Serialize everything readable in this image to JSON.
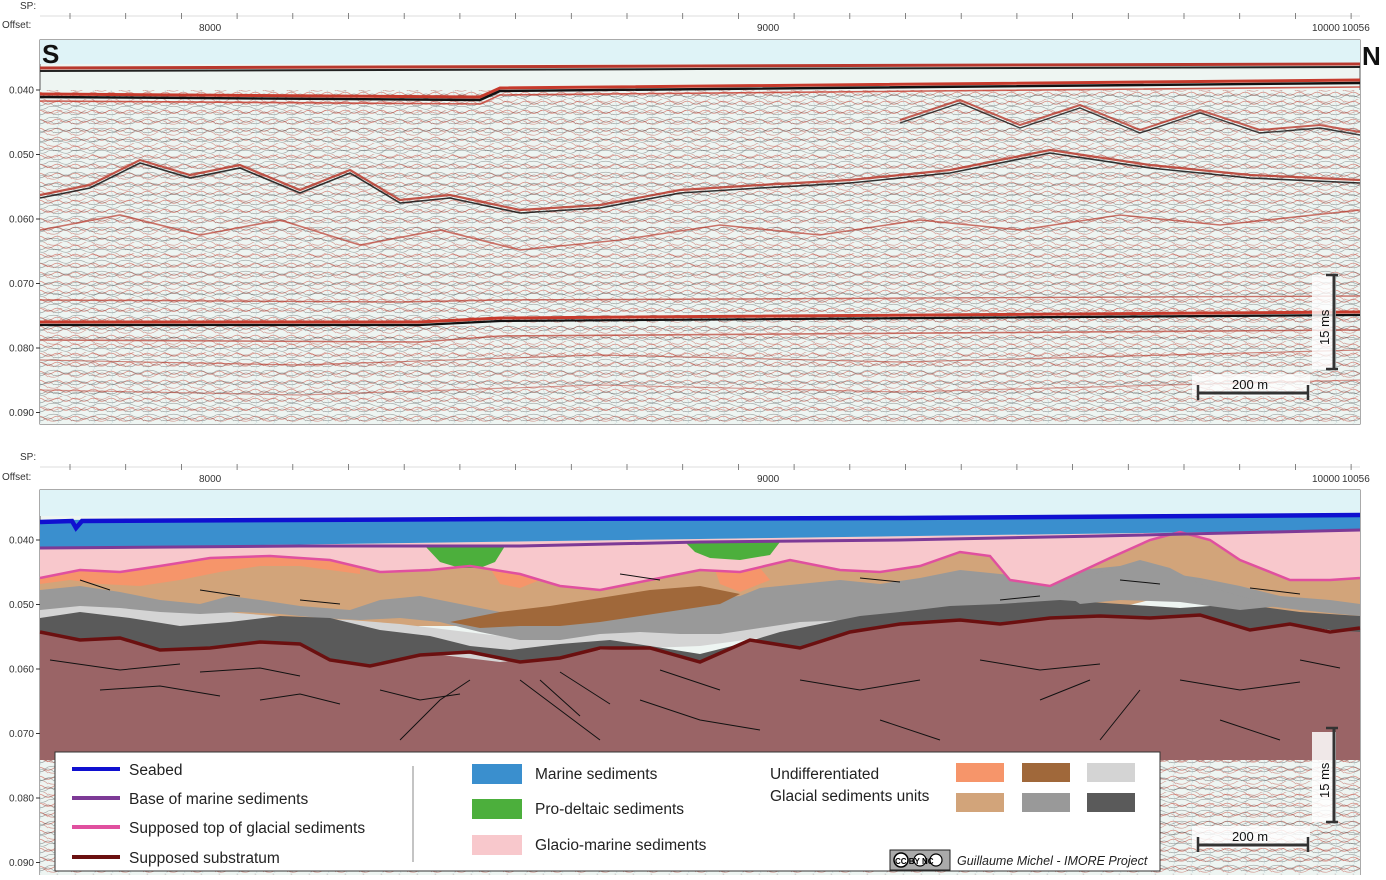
{
  "header": {
    "sp_label": "SP:",
    "offset_label": "Offset:",
    "offset_ticks": [
      "8000",
      "9000",
      "10000",
      "10056"
    ]
  },
  "orientation": {
    "south": "S",
    "north": "N"
  },
  "y_axis": {
    "ticks": [
      "0.040",
      "0.050",
      "0.060",
      "0.070",
      "0.080",
      "0.090"
    ]
  },
  "scale_bar": {
    "horizontal": "200 m",
    "vertical": "15 ms"
  },
  "legend": {
    "lines": [
      {
        "label": "Seabed",
        "color": "#1010d0"
      },
      {
        "label": "Base of marine sediments",
        "color": "#7d3a96"
      },
      {
        "label": "Supposed top of glacial sediments",
        "color": "#e0509f"
      },
      {
        "label": "Supposed substratum",
        "color": "#6b1010"
      }
    ],
    "fills": [
      {
        "label": "Marine sediments",
        "color": "#3a8fce"
      },
      {
        "label": "Pro-deltaic sediments",
        "color": "#4caf3c"
      },
      {
        "label": "Glacio-marine sediments",
        "color": "#f8c8cc"
      }
    ],
    "glacial_label_1": "Undifferentiated",
    "glacial_label_2": "Glacial sediments units",
    "glacial_colors": [
      "#f6956a",
      "#a0683a",
      "#d4d4d4",
      "#d2a47a",
      "#999999",
      "#5a5a5a"
    ]
  },
  "credit": {
    "license": "CC BY NC",
    "text": "Guillaume Michel - IMORE Project"
  },
  "colors": {
    "sky": "#dff3f7",
    "noise_bg": "#eef4f2",
    "substratum": "#9a6466",
    "glacial_tan": "#d2a47a",
    "glacio_marine": "#f8c8cc"
  }
}
